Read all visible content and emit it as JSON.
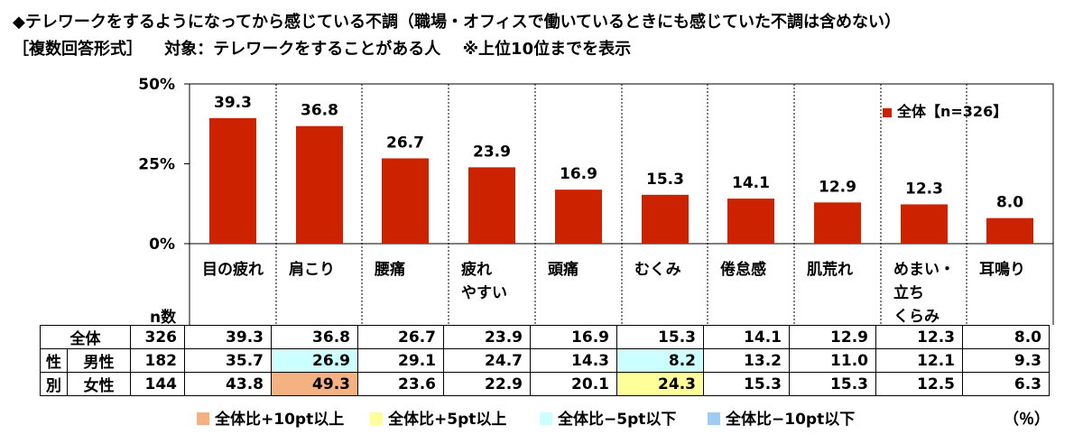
{
  "title": "◆テレワークをするようになってから感じている不調（職場・オフィスで働いているときにも感じていた不調は含めない）",
  "subtitle_parts": [
    "［複数回答形式］",
    "対象：テレワークをすることがある人",
    "※上位10位までを表示"
  ],
  "legend_label": "全体【n=326】",
  "n_label": "n数",
  "percent_unit": "（％）",
  "highlight_legend": [
    {
      "label": "全体比+10pt以上",
      "color": "#f6b183"
    },
    {
      "label": "全体比+5pt以上",
      "color": "#ffff99"
    },
    {
      "label": "全体比−5pt以下",
      "color": "#ccffff"
    },
    {
      "label": "全体比−10pt以下",
      "color": "#9fcbf5"
    }
  ],
  "category_labels": [
    "目の疲れ",
    "肩こり",
    "腰痛",
    "疲れ\nやすい",
    "頭痛",
    "むくみ",
    "倦怠感",
    "肌荒れ",
    "めまい・\n立ち\nくらみ",
    "耳鳴り"
  ],
  "chart_data": {
    "type": "bar",
    "categories": [
      "目の疲れ",
      "肩こり",
      "腰痛",
      "疲れやすい",
      "頭痛",
      "むくみ",
      "倦怠感",
      "肌荒れ",
      "めまい・立ちくらみ",
      "耳鳴り"
    ],
    "series": [
      {
        "name": "全体【n=326】",
        "values": [
          39.3,
          36.8,
          26.7,
          23.9,
          16.9,
          15.3,
          14.1,
          12.9,
          12.3,
          8.0
        ],
        "color": "#cc2200"
      }
    ],
    "value_labels": [
      "39.3",
      "36.8",
      "26.7",
      "23.9",
      "16.9",
      "15.3",
      "14.1",
      "12.9",
      "12.3",
      "8.0"
    ],
    "ylim": [
      0,
      50
    ],
    "yticks": [
      "0%",
      "25%",
      "50%"
    ],
    "ytick_values": [
      0,
      25,
      50
    ],
    "legend_position": "top-right"
  },
  "table": {
    "side_group_label": [
      "性",
      "別"
    ],
    "rows": [
      {
        "label": "全体",
        "n": "326",
        "values": [
          "39.3",
          "36.8",
          "26.7",
          "23.9",
          "16.9",
          "15.3",
          "14.1",
          "12.9",
          "12.3",
          "8.0"
        ],
        "highlights": [
          null,
          null,
          null,
          null,
          null,
          null,
          null,
          null,
          null,
          null
        ]
      },
      {
        "label": "男性",
        "n": "182",
        "values": [
          "35.7",
          "26.9",
          "29.1",
          "24.7",
          "14.3",
          "8.2",
          "13.2",
          "11.0",
          "12.1",
          "9.3"
        ],
        "highlights": [
          null,
          "#ccffff",
          null,
          null,
          null,
          "#ccffff",
          null,
          null,
          null,
          null
        ]
      },
      {
        "label": "女性",
        "n": "144",
        "values": [
          "43.8",
          "49.3",
          "23.6",
          "22.9",
          "20.1",
          "24.3",
          "15.3",
          "15.3",
          "12.5",
          "6.3"
        ],
        "highlights": [
          null,
          "#f6b183",
          null,
          null,
          null,
          "#ffff99",
          null,
          null,
          null,
          null
        ]
      }
    ]
  }
}
